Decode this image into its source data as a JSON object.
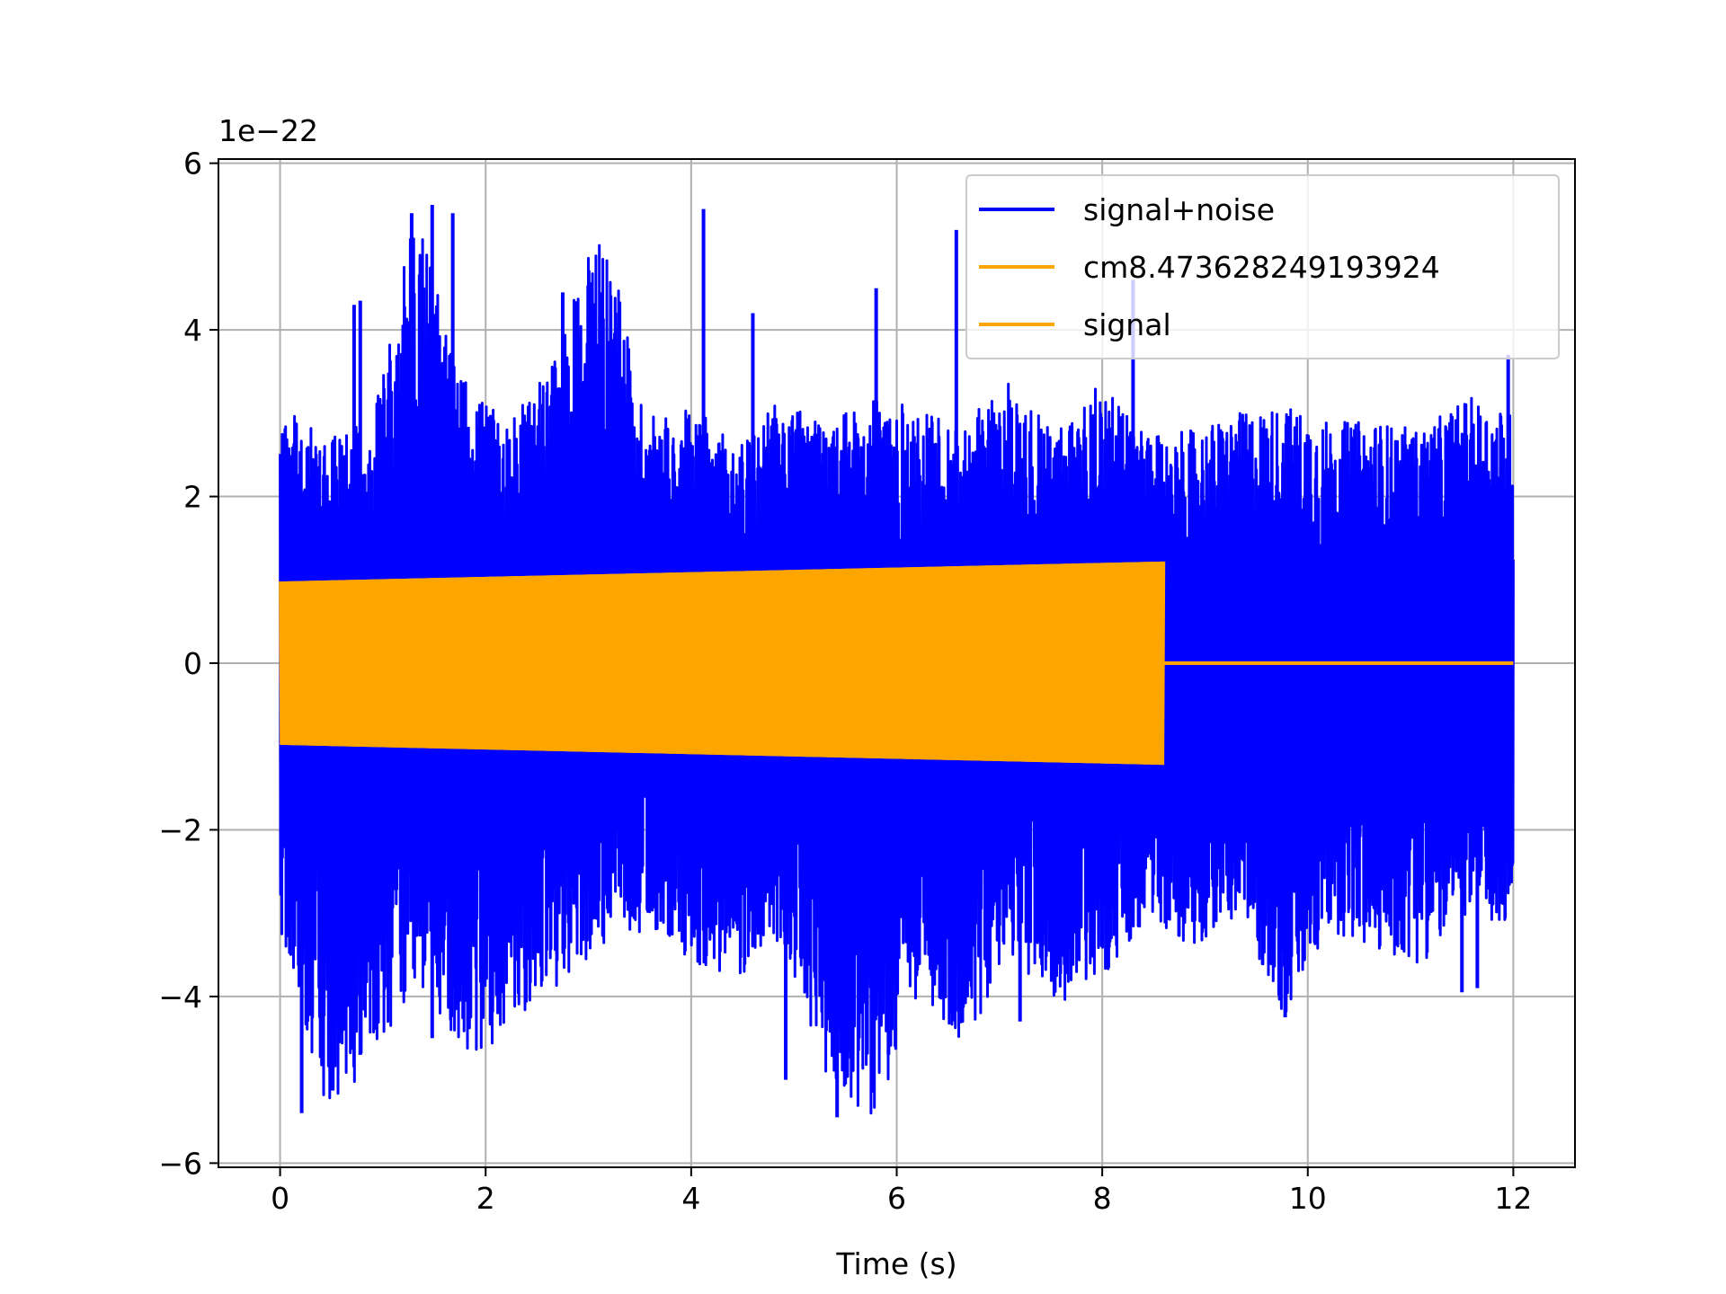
{
  "chart_data": {
    "type": "line",
    "title": "",
    "xlabel": "Time (s)",
    "ylabel": "",
    "y_offset_label": "1e−22",
    "xlim": [
      -0.6,
      12.6
    ],
    "ylim": [
      -6.05,
      6.05
    ],
    "xticks": [
      0,
      2,
      4,
      6,
      8,
      10,
      12
    ],
    "xtick_labels": [
      "0",
      "2",
      "4",
      "6",
      "8",
      "10",
      "12"
    ],
    "yticks": [
      -6,
      -4,
      -2,
      0,
      2,
      4,
      6
    ],
    "ytick_labels": [
      "−6",
      "−4",
      "−2",
      "0",
      "2",
      "4",
      "6"
    ],
    "grid": true,
    "legend_position": "top-right",
    "series": [
      {
        "name": "signal+noise",
        "color": "#0000ff",
        "x_range": [
          0,
          12
        ],
        "envelope_upper": [
          3.1,
          2.7,
          2.9,
          5.5,
          3.4,
          2.9,
          3.6,
          5.5,
          3.0,
          3.1,
          2.6,
          3.2,
          2.8,
          3.3,
          3.0,
          2.9,
          3.4,
          2.8,
          3.4,
          2.7,
          2.8,
          3.0,
          3.1,
          2.9,
          2.9,
          2.8,
          3.2,
          3.0
        ],
        "envelope_lower": [
          -3.2,
          -5.4,
          -4.8,
          -3.8,
          -4.7,
          -4.5,
          -3.9,
          -3.4,
          -3.2,
          -3.6,
          -3.8,
          -3.3,
          -5.0,
          -5.5,
          -3.9,
          -4.6,
          -3.5,
          -4.1,
          -3.8,
          -3.1,
          -3.4,
          -3.0,
          -4.3,
          -3.2,
          -3.5,
          -3.6,
          -3.0,
          -3.3
        ],
        "spikes": [
          {
            "x": 0.21,
            "y": -5.4
          },
          {
            "x": 0.72,
            "y": 4.3
          },
          {
            "x": 0.78,
            "y": 4.35
          },
          {
            "x": 0.78,
            "y": -4.7
          },
          {
            "x": 0.92,
            "y": -4.4
          },
          {
            "x": 1.28,
            "y": 5.4
          },
          {
            "x": 1.48,
            "y": 5.5
          },
          {
            "x": 1.48,
            "y": -4.5
          },
          {
            "x": 1.68,
            "y": 5.4
          },
          {
            "x": 2.75,
            "y": 4.45
          },
          {
            "x": 4.12,
            "y": 5.45
          },
          {
            "x": 4.6,
            "y": 4.2
          },
          {
            "x": 4.92,
            "y": -5.0
          },
          {
            "x": 5.42,
            "y": -5.45
          },
          {
            "x": 5.8,
            "y": 4.5
          },
          {
            "x": 5.92,
            "y": -4.7
          },
          {
            "x": 6.58,
            "y": 5.2
          },
          {
            "x": 7.2,
            "y": -4.3
          },
          {
            "x": 8.3,
            "y": 4.6
          },
          {
            "x": 9.78,
            "y": -4.25
          },
          {
            "x": 11.5,
            "y": -3.95
          },
          {
            "x": 11.65,
            "y": -3.9
          },
          {
            "x": 11.95,
            "y": 3.7
          }
        ]
      },
      {
        "name": "cm8.473628249193924",
        "color": "#ffa500",
        "x_start": 0,
        "x_end": 8.6,
        "amplitude_start": 0.98,
        "amplitude_end": 1.22
      },
      {
        "name": "signal",
        "color": "#ffa500",
        "x_start": 8.6,
        "x_end": 12,
        "value": 0
      }
    ]
  }
}
